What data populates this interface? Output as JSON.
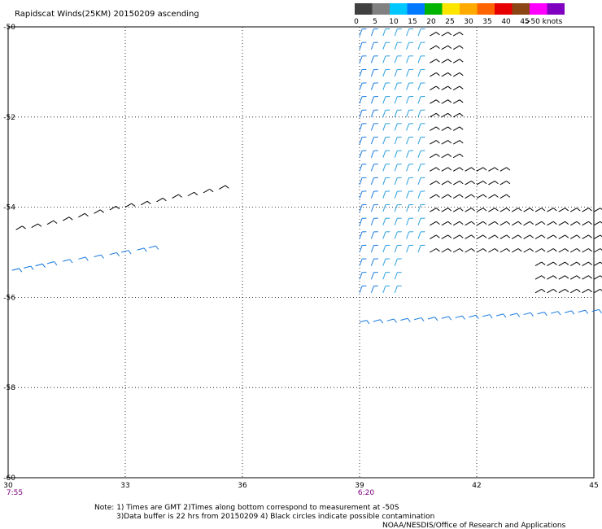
{
  "title": "Rapidscat Winds(25KM) 20150209 ascending",
  "legend": {
    "labels": [
      "0",
      "5",
      "10",
      "15",
      "20",
      "25",
      "30",
      "35",
      "40",
      "45",
      ">50 knots"
    ],
    "colors": [
      "#404040",
      "#808080",
      "#00c8ff",
      "#0078ff",
      "#00b400",
      "#ffe600",
      "#ffaa00",
      "#ff6400",
      "#e60000",
      "#8b4513",
      "#ff00ff",
      "#8000c0"
    ]
  },
  "notes": {
    "line1": "Note: 1) Times are GMT 2)Times along bottom correspond to measurement at -50S",
    "line2": "3)Data buffer is 22 hrs from 20150209 4) Black circles indicate possible contamination",
    "credit": "NOAA/NESDIS/Office of Research and Applications"
  },
  "times": [
    {
      "lon": 30,
      "label": "7:55"
    },
    {
      "lon": 39,
      "label": "6:20"
    }
  ],
  "chart_data": {
    "type": "scatter",
    "title": "Rapidscat Winds(25KM) 20150209 ascending",
    "xlabel": "",
    "ylabel": "",
    "xlim": [
      30,
      45
    ],
    "ylim": [
      -60,
      -50
    ],
    "xticks": [
      30,
      33,
      36,
      39,
      42,
      45
    ],
    "yticks": [
      -50,
      -52,
      -54,
      -56,
      -58,
      -60
    ],
    "grid": true,
    "legend_position": "top-right",
    "series": [
      {
        "x": [
          30.2,
          30.6,
          31.0,
          31.4,
          31.8,
          32.2,
          32.6,
          33.0,
          33.4,
          33.8,
          34.2,
          34.6,
          35.0,
          35.4
        ],
        "y": [
          -54.5,
          -54.45,
          -54.38,
          -54.3,
          -54.22,
          -54.14,
          -54.06,
          -54.0,
          -53.95,
          -53.88,
          -53.8,
          -53.75,
          -53.68,
          -53.6
        ],
        "speed": [
          35,
          33,
          32,
          31,
          33,
          32,
          34,
          31,
          33,
          32,
          34,
          33,
          31,
          32
        ]
      },
      {
        "x": [
          30.1,
          30.4,
          30.7,
          31.0,
          31.4,
          31.8,
          32.2,
          32.6,
          32.9,
          33.3,
          33.6
        ],
        "y": [
          -55.4,
          -55.35,
          -55.3,
          -55.25,
          -55.2,
          -55.15,
          -55.1,
          -55.05,
          -55.0,
          -54.95,
          -54.9
        ],
        "speed": [
          16,
          17,
          18,
          12,
          12,
          13,
          13,
          14,
          14,
          13,
          13
        ]
      }
    ]
  }
}
